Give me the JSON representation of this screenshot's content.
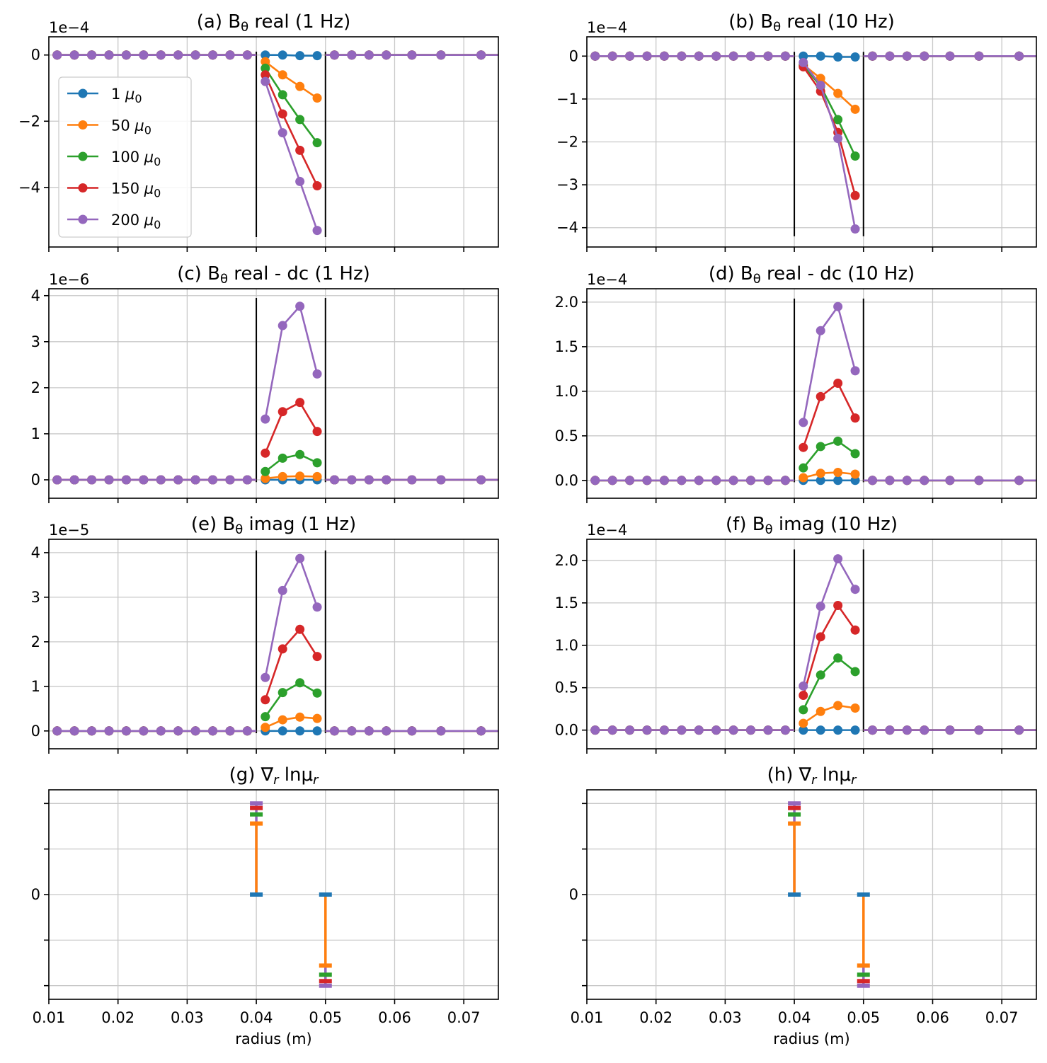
{
  "colors": {
    "1": "#1f77b4",
    "50": "#ff7f0e",
    "100": "#2ca02c",
    "150": "#d62728",
    "200": "#9467bd"
  },
  "legend": [
    {
      "key": "1",
      "label": "1 μ₀"
    },
    {
      "key": "50",
      "label": "50 μ₀"
    },
    {
      "key": "100",
      "label": "100 μ₀"
    },
    {
      "key": "150",
      "label": "150 μ₀"
    },
    {
      "key": "200",
      "label": "200 μ₀"
    }
  ],
  "x_tick_labels": [
    "0.01",
    "0.02",
    "0.03",
    "0.04",
    "0.05",
    "0.06",
    "0.07"
  ],
  "xlabel": "radius (m)",
  "chart_data": [
    {
      "id": "a",
      "type": "line",
      "title": "(a) Bθ real (1 Hz)",
      "multiplier": "1e−4",
      "xlim": [
        0.01,
        0.075
      ],
      "ylim": [
        -5.8,
        0.55
      ],
      "yticks": [
        0,
        -2,
        -4
      ],
      "ytick_labels": [
        "0",
        "−2",
        "−4"
      ],
      "boundaries": [
        0.04,
        0.05
      ],
      "boundary_ylim": [
        -5.5,
        0.1
      ],
      "legend": "upper-left",
      "x_left": [
        0.0112,
        0.0137,
        0.0162,
        0.0187,
        0.0212,
        0.0237,
        0.0262,
        0.0287,
        0.0312,
        0.0337,
        0.0362,
        0.0387
      ],
      "x_mid": [
        0.0413,
        0.0438,
        0.0463,
        0.0488
      ],
      "x_right": [
        0.0513,
        0.0538,
        0.0563,
        0.0588,
        0.0625,
        0.0667,
        0.0725
      ],
      "x_end": 0.075,
      "series": [
        {
          "key": "1",
          "mid": [
            0,
            0,
            -0.02,
            -0.02
          ]
        },
        {
          "key": "50",
          "mid": [
            -0.2,
            -0.6,
            -0.95,
            -1.3
          ]
        },
        {
          "key": "100",
          "mid": [
            -0.4,
            -1.2,
            -1.95,
            -2.65
          ]
        },
        {
          "key": "150",
          "mid": [
            -0.6,
            -1.78,
            -2.88,
            -3.95
          ]
        },
        {
          "key": "200",
          "mid": [
            -0.8,
            -2.35,
            -3.82,
            -5.3
          ]
        }
      ]
    },
    {
      "id": "b",
      "type": "line",
      "title": "(b) Bθ real (10 Hz)",
      "multiplier": "1e−4",
      "xlim": [
        0.01,
        0.075
      ],
      "ylim": [
        -4.45,
        0.45
      ],
      "yticks": [
        0,
        -1,
        -2,
        -3,
        -4
      ],
      "ytick_labels": [
        "0",
        "−1",
        "−2",
        "−3",
        "−4"
      ],
      "boundaries": [
        0.04,
        0.05
      ],
      "boundary_ylim": [
        -4.2,
        0.1
      ],
      "legend": "none",
      "x_left": [
        0.0112,
        0.0137,
        0.0162,
        0.0187,
        0.0212,
        0.0237,
        0.0262,
        0.0287,
        0.0312,
        0.0337,
        0.0362,
        0.0387
      ],
      "x_mid": [
        0.0413,
        0.0438,
        0.0463,
        0.0488
      ],
      "x_right": [
        0.0513,
        0.0538,
        0.0563,
        0.0588,
        0.0625,
        0.0667,
        0.0725
      ],
      "x_end": 0.075,
      "series": [
        {
          "key": "1",
          "mid": [
            0,
            0,
            -0.02,
            -0.02
          ]
        },
        {
          "key": "50",
          "mid": [
            -0.2,
            -0.52,
            -0.87,
            -1.24
          ]
        },
        {
          "key": "100",
          "mid": [
            -0.22,
            -0.7,
            -1.48,
            -2.33
          ]
        },
        {
          "key": "150",
          "mid": [
            -0.25,
            -0.82,
            -1.78,
            -3.25
          ]
        },
        {
          "key": "200",
          "mid": [
            -0.15,
            -0.68,
            -1.92,
            -4.03
          ]
        }
      ]
    },
    {
      "id": "c",
      "type": "line",
      "title": "(c) Bθ real - dc (1 Hz)",
      "multiplier": "1e−6",
      "xlim": [
        0.01,
        0.075
      ],
      "ylim": [
        -0.4,
        4.15
      ],
      "yticks": [
        0,
        1,
        2,
        3,
        4
      ],
      "ytick_labels": [
        "0",
        "1",
        "2",
        "3",
        "4"
      ],
      "boundaries": [
        0.04,
        0.05
      ],
      "boundary_ylim": [
        -0.05,
        3.95
      ],
      "legend": "none",
      "x_left": [
        0.0112,
        0.0137,
        0.0162,
        0.0187,
        0.0212,
        0.0237,
        0.0262,
        0.0287,
        0.0312,
        0.0337,
        0.0362,
        0.0387
      ],
      "x_mid": [
        0.0413,
        0.0438,
        0.0463,
        0.0488
      ],
      "x_right": [
        0.0513,
        0.0538,
        0.0563,
        0.0588,
        0.0625,
        0.0667,
        0.0725
      ],
      "x_end": 0.075,
      "series": [
        {
          "key": "1",
          "mid": [
            0,
            0,
            0,
            0
          ]
        },
        {
          "key": "50",
          "mid": [
            0.03,
            0.07,
            0.08,
            0.07
          ]
        },
        {
          "key": "100",
          "mid": [
            0.18,
            0.47,
            0.55,
            0.37
          ]
        },
        {
          "key": "150",
          "mid": [
            0.58,
            1.48,
            1.68,
            1.05
          ]
        },
        {
          "key": "200",
          "mid": [
            1.32,
            3.35,
            3.77,
            2.3
          ]
        }
      ]
    },
    {
      "id": "d",
      "type": "line",
      "title": "(d) Bθ real - dc (10 Hz)",
      "multiplier": "1e−4",
      "xlim": [
        0.01,
        0.075
      ],
      "ylim": [
        -0.2,
        2.15
      ],
      "yticks": [
        0,
        0.5,
        1,
        1.5,
        2
      ],
      "ytick_labels": [
        "0.0",
        "0.5",
        "1.0",
        "1.5",
        "2.0"
      ],
      "boundaries": [
        0.04,
        0.05
      ],
      "boundary_ylim": [
        -0.02,
        2.04
      ],
      "legend": "none",
      "x_left": [
        0.0112,
        0.0137,
        0.0162,
        0.0187,
        0.0212,
        0.0237,
        0.0262,
        0.0287,
        0.0312,
        0.0337,
        0.0362,
        0.0387
      ],
      "x_mid": [
        0.0413,
        0.0438,
        0.0463,
        0.0488
      ],
      "x_right": [
        0.0513,
        0.0538,
        0.0563,
        0.0588,
        0.0625,
        0.0667,
        0.0725
      ],
      "x_end": 0.075,
      "series": [
        {
          "key": "1",
          "mid": [
            0,
            0,
            0,
            0
          ]
        },
        {
          "key": "50",
          "mid": [
            0.03,
            0.08,
            0.09,
            0.07
          ]
        },
        {
          "key": "100",
          "mid": [
            0.14,
            0.38,
            0.44,
            0.3
          ]
        },
        {
          "key": "150",
          "mid": [
            0.37,
            0.94,
            1.09,
            0.7
          ]
        },
        {
          "key": "200",
          "mid": [
            0.65,
            1.68,
            1.95,
            1.23
          ]
        }
      ]
    },
    {
      "id": "e",
      "type": "line",
      "title": "(e) Bθ imag (1 Hz)",
      "multiplier": "1e−5",
      "xlim": [
        0.01,
        0.075
      ],
      "ylim": [
        -0.4,
        4.3
      ],
      "yticks": [
        0,
        1,
        2,
        3,
        4
      ],
      "ytick_labels": [
        "0",
        "1",
        "2",
        "3",
        "4"
      ],
      "boundaries": [
        0.04,
        0.05
      ],
      "boundary_ylim": [
        -0.05,
        4.05
      ],
      "legend": "none",
      "x_left": [
        0.0112,
        0.0137,
        0.0162,
        0.0187,
        0.0212,
        0.0237,
        0.0262,
        0.0287,
        0.0312,
        0.0337,
        0.0362,
        0.0387
      ],
      "x_mid": [
        0.0413,
        0.0438,
        0.0463,
        0.0488
      ],
      "x_right": [
        0.0513,
        0.0538,
        0.0563,
        0.0588,
        0.0625,
        0.0667,
        0.0725
      ],
      "x_end": 0.075,
      "series": [
        {
          "key": "1",
          "mid": [
            0,
            0,
            0,
            0
          ]
        },
        {
          "key": "50",
          "mid": [
            0.08,
            0.25,
            0.31,
            0.28
          ]
        },
        {
          "key": "100",
          "mid": [
            0.32,
            0.86,
            1.08,
            0.85
          ]
        },
        {
          "key": "150",
          "mid": [
            0.7,
            1.84,
            2.28,
            1.67
          ]
        },
        {
          "key": "200",
          "mid": [
            1.2,
            3.15,
            3.87,
            2.78
          ]
        }
      ]
    },
    {
      "id": "f",
      "type": "line",
      "title": "(f) Bθ imag (10 Hz)",
      "multiplier": "1e−4",
      "xlim": [
        0.01,
        0.075
      ],
      "ylim": [
        -0.22,
        2.25
      ],
      "yticks": [
        0,
        0.5,
        1,
        1.5,
        2
      ],
      "ytick_labels": [
        "0.0",
        "0.5",
        "1.0",
        "1.5",
        "2.0"
      ],
      "boundaries": [
        0.04,
        0.05
      ],
      "boundary_ylim": [
        -0.02,
        2.13
      ],
      "legend": "none",
      "x_left": [
        0.0112,
        0.0137,
        0.0162,
        0.0187,
        0.0212,
        0.0237,
        0.0262,
        0.0287,
        0.0312,
        0.0337,
        0.0362,
        0.0387
      ],
      "x_mid": [
        0.0413,
        0.0438,
        0.0463,
        0.0488
      ],
      "x_right": [
        0.0513,
        0.0538,
        0.0563,
        0.0588,
        0.0625,
        0.0667,
        0.0725
      ],
      "x_end": 0.075,
      "series": [
        {
          "key": "1",
          "mid": [
            0,
            0,
            0,
            0
          ]
        },
        {
          "key": "50",
          "mid": [
            0.08,
            0.22,
            0.29,
            0.26
          ]
        },
        {
          "key": "100",
          "mid": [
            0.24,
            0.65,
            0.85,
            0.69
          ]
        },
        {
          "key": "150",
          "mid": [
            0.41,
            1.1,
            1.47,
            1.18
          ]
        },
        {
          "key": "200",
          "mid": [
            0.52,
            1.46,
            2.02,
            1.66
          ]
        }
      ]
    },
    {
      "id": "g",
      "type": "errorbar",
      "title": "(g) ∇r lnμr",
      "multiplier": "",
      "xlim": [
        0.01,
        0.075
      ],
      "ylim": [
        -1.15,
        1.15
      ],
      "yticks": [
        -1,
        -0.5,
        0,
        0.5,
        1
      ],
      "ytick_labels": [
        "",
        "",
        "0",
        "",
        ""
      ],
      "bars": [
        {
          "x": 0.04,
          "caps": [
            {
              "key": "1",
              "y": 0
            },
            {
              "key": "50",
              "y": 0.78
            },
            {
              "key": "100",
              "y": 0.88
            },
            {
              "key": "150",
              "y": 0.95
            },
            {
              "key": "200",
              "y": 1.0
            }
          ]
        },
        {
          "x": 0.05,
          "caps": [
            {
              "key": "1",
              "y": 0
            },
            {
              "key": "50",
              "y": -0.78
            },
            {
              "key": "100",
              "y": -0.88
            },
            {
              "key": "150",
              "y": -0.95
            },
            {
              "key": "200",
              "y": -1.0
            }
          ]
        }
      ]
    },
    {
      "id": "h",
      "type": "errorbar",
      "title": "(h) ∇r lnμr",
      "multiplier": "",
      "xlim": [
        0.01,
        0.075
      ],
      "ylim": [
        -1.15,
        1.15
      ],
      "yticks": [
        -1,
        -0.5,
        0,
        0.5,
        1
      ],
      "ytick_labels": [
        "",
        "",
        "0",
        "",
        ""
      ],
      "bars": [
        {
          "x": 0.04,
          "caps": [
            {
              "key": "1",
              "y": 0
            },
            {
              "key": "50",
              "y": 0.78
            },
            {
              "key": "100",
              "y": 0.88
            },
            {
              "key": "150",
              "y": 0.95
            },
            {
              "key": "200",
              "y": 1.0
            }
          ]
        },
        {
          "x": 0.05,
          "caps": [
            {
              "key": "1",
              "y": 0
            },
            {
              "key": "50",
              "y": -0.78
            },
            {
              "key": "100",
              "y": -0.88
            },
            {
              "key": "150",
              "y": -0.95
            },
            {
              "key": "200",
              "y": -1.0
            }
          ]
        }
      ]
    }
  ]
}
